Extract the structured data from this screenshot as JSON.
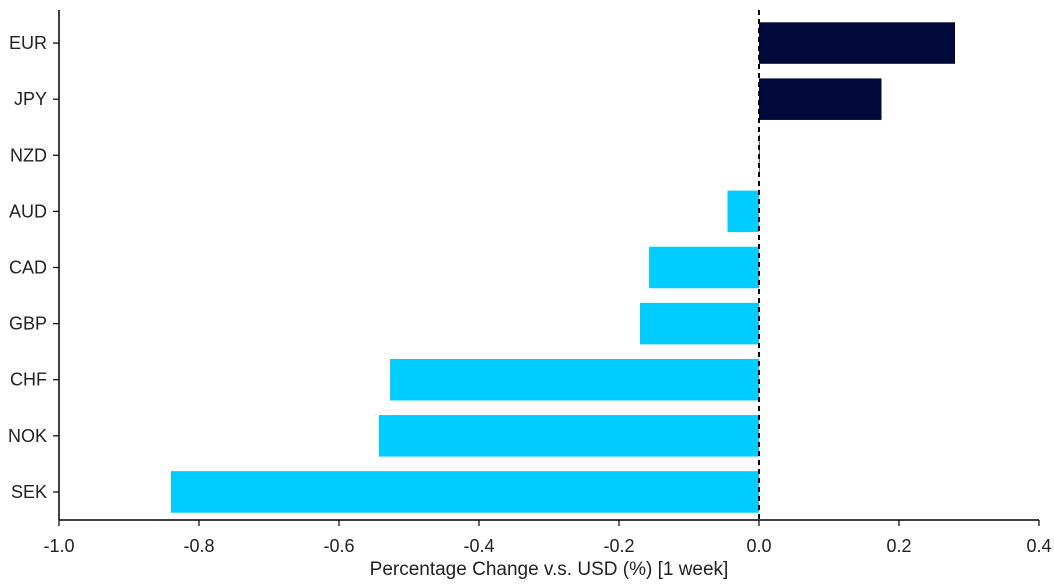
{
  "chart_data": {
    "type": "bar",
    "orientation": "horizontal",
    "categories": [
      "EUR",
      "JPY",
      "NZD",
      "AUD",
      "CAD",
      "GBP",
      "CHF",
      "NOK",
      "SEK"
    ],
    "values": [
      0.28,
      0.175,
      0.0,
      -0.045,
      -0.157,
      -0.17,
      -0.527,
      -0.543,
      -0.84
    ],
    "title": "",
    "xlabel": "Percentage Change v.s. USD (%) [1 week]",
    "ylabel": "",
    "xlim": [
      -1.0,
      0.4
    ],
    "x_ticks": [
      "-1.0",
      "-0.8",
      "-0.6",
      "-0.4",
      "-0.2",
      "0.0",
      "0.2",
      "0.4"
    ],
    "x_tick_values": [
      -1.0,
      -0.8,
      -0.6,
      -0.4,
      -0.2,
      0.0,
      0.2,
      0.4
    ],
    "grid": false,
    "legend": "none",
    "zero_line": "dashed",
    "colors": {
      "positive": "#000a3a",
      "negative": "#00ccff",
      "axis": "#000000"
    }
  }
}
